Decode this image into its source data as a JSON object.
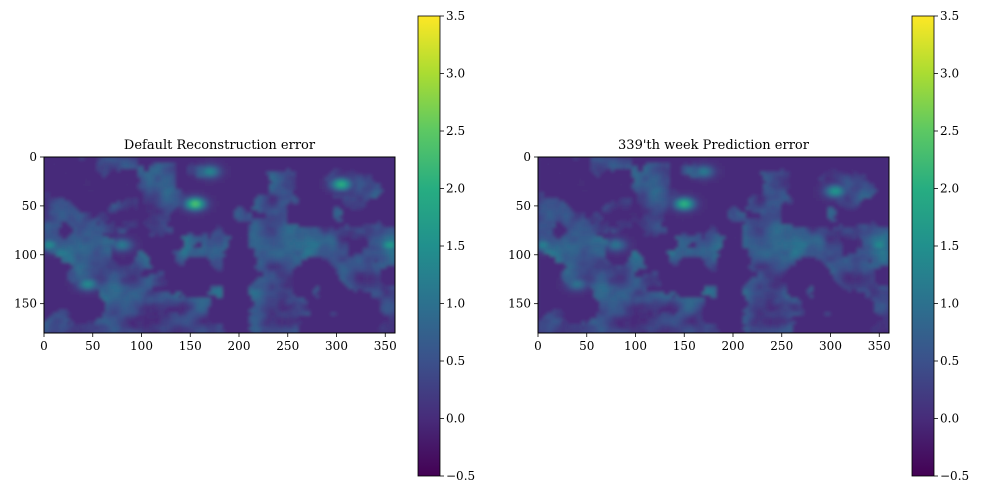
{
  "chart_data": [
    {
      "type": "heatmap",
      "title": "Default Reconstruction error",
      "xlabel": "",
      "ylabel": "",
      "xlim": [
        0,
        360
      ],
      "ylim": [
        180,
        0
      ],
      "xticks": [
        0,
        50,
        100,
        150,
        200,
        250,
        300,
        350
      ],
      "yticks": [
        0,
        50,
        100,
        150
      ],
      "colormap": "viridis",
      "colorbar": {
        "vmin": -0.5,
        "vmax": 3.5,
        "ticks": [
          "−0.5",
          "0.0",
          "0.5",
          "1.0",
          "1.5",
          "2.0",
          "2.5",
          "3.0",
          "3.5"
        ]
      },
      "ocean_value": 0.0,
      "hotspots": [
        {
          "x": 155,
          "y": 48,
          "value": 2.5
        },
        {
          "x": 305,
          "y": 28,
          "value": 2.1
        },
        {
          "x": 355,
          "y": 90,
          "value": 1.8
        },
        {
          "x": 5,
          "y": 90,
          "value": 1.5
        },
        {
          "x": 45,
          "y": 130,
          "value": 1.5
        },
        {
          "x": 80,
          "y": 90,
          "value": 1.2
        },
        {
          "x": 170,
          "y": 15,
          "value": 1.4
        }
      ]
    },
    {
      "type": "heatmap",
      "title": "339'th week Prediction error",
      "xlabel": "",
      "ylabel": "",
      "xlim": [
        0,
        360
      ],
      "ylim": [
        180,
        0
      ],
      "xticks": [
        0,
        50,
        100,
        150,
        200,
        250,
        300,
        350
      ],
      "yticks": [
        0,
        50,
        100,
        150
      ],
      "colormap": "viridis",
      "colorbar": {
        "vmin": -0.5,
        "vmax": 3.5,
        "ticks": [
          "−0.5",
          "0.0",
          "0.5",
          "1.0",
          "1.5",
          "2.0",
          "2.5",
          "3.0",
          "3.5"
        ]
      },
      "ocean_value": 0.0,
      "hotspots": [
        {
          "x": 150,
          "y": 48,
          "value": 2.2
        },
        {
          "x": 305,
          "y": 35,
          "value": 1.7
        },
        {
          "x": 350,
          "y": 90,
          "value": 1.5
        },
        {
          "x": 5,
          "y": 90,
          "value": 1.3
        },
        {
          "x": 40,
          "y": 130,
          "value": 1.1
        },
        {
          "x": 80,
          "y": 90,
          "value": 1.1
        },
        {
          "x": 170,
          "y": 15,
          "value": 1.2
        }
      ]
    }
  ]
}
